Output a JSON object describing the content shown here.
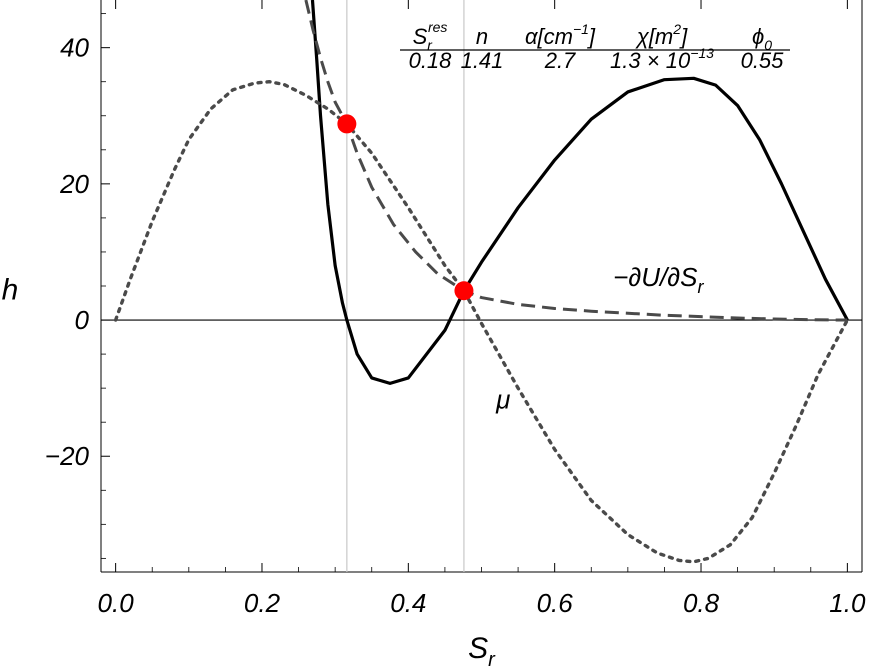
{
  "chart_data": {
    "type": "line",
    "title": "",
    "xlabel": "S",
    "xlabel_sub": "r",
    "ylabel": "h",
    "xlim": [
      -0.02,
      1.02
    ],
    "ylim": [
      -37,
      47
    ],
    "x_ticks": [
      0.0,
      0.2,
      0.4,
      0.6,
      0.8,
      1.0
    ],
    "x_tick_labels": [
      "0.0",
      "0.2",
      "0.4",
      "0.6",
      "0.8",
      "1.0"
    ],
    "y_ticks": [
      -20,
      0,
      20,
      40
    ],
    "y_tick_labels": [
      "−20",
      "0",
      "20",
      "40"
    ],
    "vertical_lines": [
      0.316,
      0.476
    ],
    "series": [
      {
        "name": "μ",
        "style": "solid",
        "color": "#000000",
        "x": [
          0.269,
          0.275,
          0.28,
          0.29,
          0.3,
          0.31,
          0.316,
          0.33,
          0.35,
          0.375,
          0.4,
          0.45,
          0.476,
          0.5,
          0.55,
          0.6,
          0.65,
          0.7,
          0.75,
          0.79,
          0.82,
          0.85,
          0.88,
          0.91,
          0.94,
          0.97,
          1.0
        ],
        "y": [
          47,
          38,
          30,
          17,
          8,
          2.5,
          0,
          -5,
          -8.5,
          -9.3,
          -8.5,
          -1.5,
          4.3,
          8.5,
          16.5,
          23.5,
          29.5,
          33.5,
          35.3,
          35.5,
          34.5,
          31.5,
          26.5,
          20,
          13,
          6,
          0
        ]
      },
      {
        "name": "−∂U/∂S",
        "name_sub": "r",
        "style": "dashed",
        "color": "#4a4a4a",
        "x": [
          0.26,
          0.27,
          0.28,
          0.29,
          0.3,
          0.316,
          0.33,
          0.35,
          0.38,
          0.41,
          0.44,
          0.476,
          0.5,
          0.55,
          0.6,
          0.65,
          0.7,
          0.75,
          0.8,
          0.85,
          0.9,
          0.95,
          1.0
        ],
        "y": [
          47,
          42.5,
          38.5,
          35,
          32,
          28.8,
          24.5,
          19.5,
          14,
          10,
          6.8,
          4.3,
          3.3,
          2.3,
          1.7,
          1.3,
          1.0,
          0.7,
          0.5,
          0.3,
          0.15,
          0.05,
          0
        ]
      },
      {
        "name": "",
        "style": "dotted",
        "color": "#4a4a4a",
        "x": [
          0.0,
          0.02,
          0.05,
          0.08,
          0.1,
          0.13,
          0.16,
          0.19,
          0.21,
          0.23,
          0.26,
          0.29,
          0.316,
          0.35,
          0.4,
          0.45,
          0.476,
          0.5,
          0.55,
          0.6,
          0.65,
          0.7,
          0.74,
          0.77,
          0.79,
          0.81,
          0.84,
          0.87,
          0.9,
          0.93,
          0.96,
          0.98,
          1.0
        ],
        "y": [
          0,
          6,
          14.5,
          22,
          26.5,
          31,
          33.8,
          34.8,
          35,
          34.6,
          33,
          31,
          28.8,
          24.5,
          16.5,
          8,
          4.3,
          -0.5,
          -10,
          -19,
          -26.5,
          -31.5,
          -34.2,
          -35.3,
          -35.5,
          -35,
          -33,
          -29,
          -22.5,
          -15.5,
          -8,
          -4,
          0
        ]
      }
    ],
    "points": [
      {
        "x": 0.316,
        "y": 28.8,
        "color": "#ff0000"
      },
      {
        "x": 0.476,
        "y": 4.3,
        "color": "#ff0000"
      }
    ],
    "annotations": [
      {
        "text": "−∂U/∂S",
        "sub": "r",
        "x": 0.68,
        "y": 5
      },
      {
        "text": "μ",
        "x": 0.52,
        "y": -13
      }
    ],
    "parameter_table": {
      "headers": [
        {
          "base": "S",
          "sub": "r",
          "sup": "res"
        },
        {
          "base": "n"
        },
        {
          "base": "α[cm",
          "sup": "−1",
          "tail": "]"
        },
        {
          "base": "χ[m",
          "sup": "2",
          "tail": "]"
        },
        {
          "base": "ϕ",
          "sub": "0"
        }
      ],
      "values": [
        {
          "base": "0.18"
        },
        {
          "base": "1.41"
        },
        {
          "base": "2.7"
        },
        {
          "base": "1.3 × 10",
          "sup": "−13"
        },
        {
          "base": "0.55"
        }
      ]
    }
  }
}
